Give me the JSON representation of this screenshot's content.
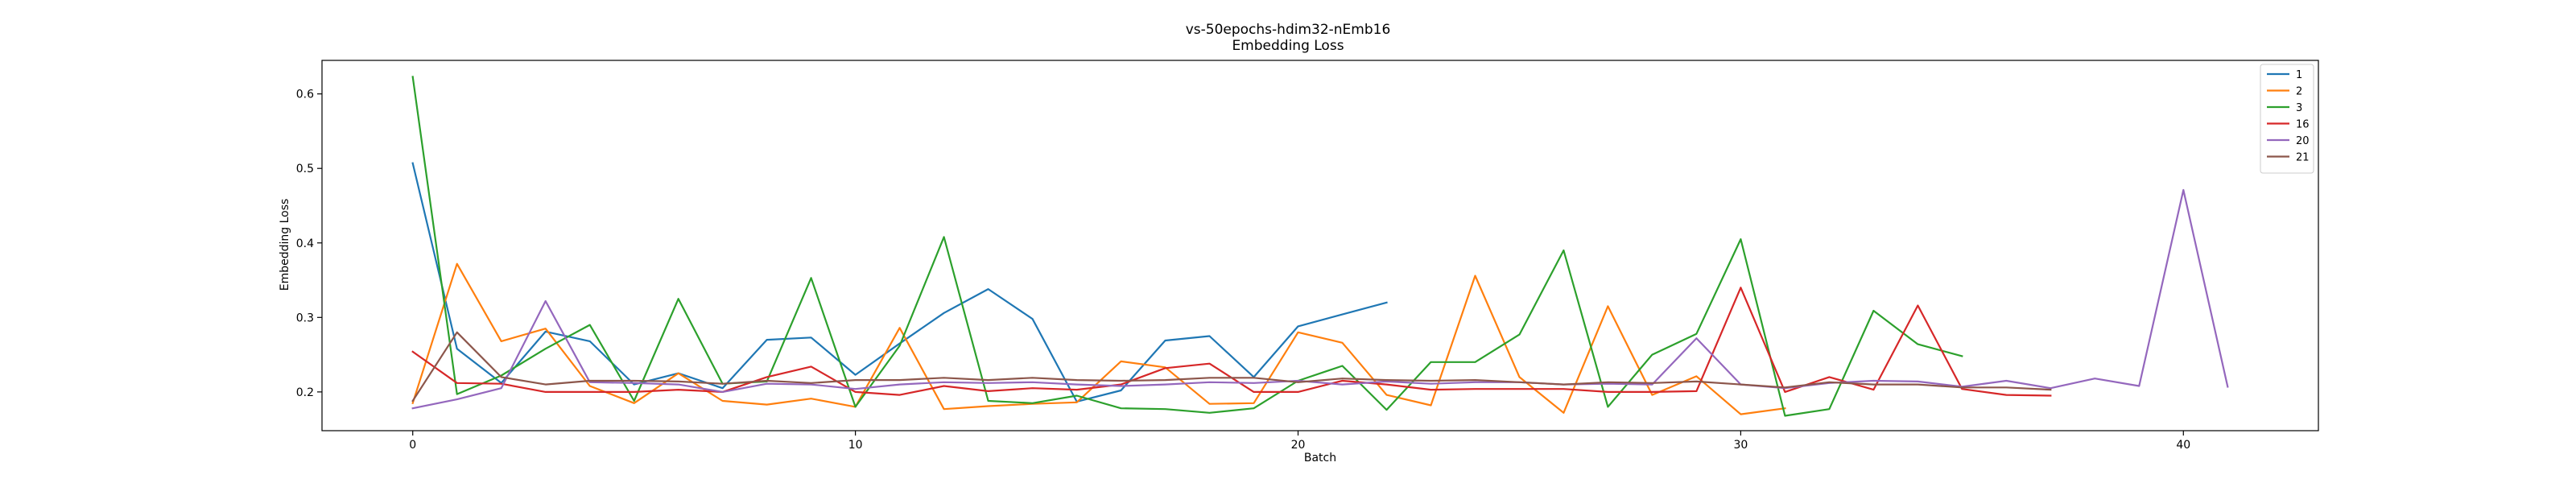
{
  "chart_data": {
    "type": "line",
    "title": "vs-50epochs-hdim32-nEmb16",
    "subtitle": "Embedding Loss",
    "xlabel": "Batch",
    "ylabel": "Embedding Loss",
    "xlim": [
      -2.05,
      43.05
    ],
    "ylim": [
      0.148,
      0.645
    ],
    "xticks": [
      0,
      10,
      20,
      30,
      40
    ],
    "yticks": [
      0.2,
      0.3,
      0.4,
      0.5,
      0.6
    ],
    "ytick_labels": [
      "0.2",
      "0.3",
      "0.4",
      "0.5",
      "0.6"
    ],
    "grid": false,
    "legend_position": "top-right",
    "series": [
      {
        "name": "1",
        "color": "#1f77b4",
        "x": [
          0,
          1,
          2,
          3,
          4,
          5,
          6,
          7,
          8,
          9,
          10,
          11,
          12,
          13,
          14,
          15,
          16,
          17,
          18,
          19,
          20,
          21,
          22
        ],
        "y": [
          0.507,
          0.258,
          0.212,
          0.281,
          0.268,
          0.21,
          0.225,
          0.205,
          0.27,
          0.273,
          0.223,
          0.265,
          0.306,
          0.338,
          0.298,
          0.187,
          0.202,
          0.269,
          0.275,
          0.22,
          0.288,
          0.304,
          0.32
        ]
      },
      {
        "name": "2",
        "color": "#ff7f0e",
        "x": [
          0,
          1,
          2,
          3,
          4,
          5,
          6,
          7,
          8,
          9,
          10,
          11,
          12,
          13,
          14,
          15,
          16,
          17,
          18,
          19,
          20,
          21,
          22,
          23,
          24,
          25,
          26,
          27,
          28,
          29,
          30,
          31
        ],
        "y": [
          0.185,
          0.372,
          0.268,
          0.285,
          0.208,
          0.185,
          0.225,
          0.188,
          0.183,
          0.191,
          0.18,
          0.286,
          0.177,
          0.181,
          0.184,
          0.186,
          0.241,
          0.233,
          0.184,
          0.185,
          0.28,
          0.266,
          0.196,
          0.182,
          0.356,
          0.22,
          0.172,
          0.315,
          0.196,
          0.221,
          0.17,
          0.178
        ]
      },
      {
        "name": "3",
        "color": "#2ca02c",
        "x": [
          0,
          1,
          2,
          3,
          4,
          5,
          6,
          7,
          8,
          9,
          10,
          11,
          12,
          13,
          14,
          15,
          16,
          17,
          18,
          19,
          20,
          21,
          22,
          23,
          24,
          25,
          26,
          27,
          28,
          29,
          30,
          31,
          32,
          33,
          34,
          35
        ],
        "y": [
          0.623,
          0.197,
          0.222,
          0.258,
          0.29,
          0.188,
          0.325,
          0.211,
          0.214,
          0.353,
          0.18,
          0.262,
          0.408,
          0.188,
          0.185,
          0.195,
          0.178,
          0.177,
          0.172,
          0.178,
          0.215,
          0.235,
          0.176,
          0.24,
          0.24,
          0.277,
          0.39,
          0.18,
          0.25,
          0.278,
          0.405,
          0.168,
          0.177,
          0.309,
          0.264,
          0.248
        ]
      },
      {
        "name": "16",
        "color": "#d62728",
        "x": [
          0,
          1,
          2,
          3,
          4,
          5,
          6,
          7,
          8,
          9,
          10,
          11,
          12,
          13,
          14,
          15,
          16,
          17,
          18,
          19,
          20,
          21,
          22,
          23,
          24,
          25,
          26,
          27,
          28,
          29,
          30,
          31,
          32,
          33,
          34,
          35,
          36,
          37
        ],
        "y": [
          0.254,
          0.212,
          0.211,
          0.2,
          0.2,
          0.2,
          0.203,
          0.2,
          0.22,
          0.234,
          0.2,
          0.196,
          0.208,
          0.201,
          0.205,
          0.203,
          0.21,
          0.232,
          0.238,
          0.2,
          0.2,
          0.215,
          0.21,
          0.203,
          0.204,
          0.204,
          0.204,
          0.2,
          0.2,
          0.201,
          0.34,
          0.2,
          0.22,
          0.203,
          0.316,
          0.204,
          0.196,
          0.195
        ]
      },
      {
        "name": "20",
        "color": "#9467bd",
        "x": [
          0,
          1,
          2,
          3,
          4,
          5,
          6,
          7,
          8,
          9,
          10,
          11,
          12,
          13,
          14,
          15,
          16,
          17,
          18,
          19,
          20,
          21,
          22,
          23,
          24,
          25,
          26,
          27,
          28,
          29,
          30,
          31,
          32,
          33,
          34,
          35,
          36,
          37,
          38,
          39,
          40,
          41
        ],
        "y": [
          0.178,
          0.19,
          0.205,
          0.322,
          0.213,
          0.212,
          0.21,
          0.2,
          0.211,
          0.21,
          0.204,
          0.21,
          0.213,
          0.212,
          0.213,
          0.21,
          0.208,
          0.21,
          0.213,
          0.212,
          0.215,
          0.21,
          0.214,
          0.211,
          0.213,
          0.213,
          0.21,
          0.211,
          0.21,
          0.272,
          0.21,
          0.205,
          0.212,
          0.215,
          0.214,
          0.207,
          0.215,
          0.205,
          0.218,
          0.208,
          0.471,
          0.207
        ]
      },
      {
        "name": "21",
        "color": "#8c564b",
        "x": [
          0,
          1,
          2,
          3,
          4,
          5,
          6,
          7,
          8,
          9,
          10,
          11,
          12,
          13,
          14,
          15,
          16,
          17,
          18,
          19,
          20,
          21,
          22,
          23,
          24,
          25,
          26,
          27,
          28,
          29,
          30,
          31,
          32,
          33,
          34,
          35,
          36,
          37
        ],
        "y": [
          0.188,
          0.28,
          0.22,
          0.21,
          0.215,
          0.215,
          0.214,
          0.211,
          0.215,
          0.212,
          0.216,
          0.216,
          0.219,
          0.216,
          0.219,
          0.216,
          0.215,
          0.216,
          0.219,
          0.219,
          0.213,
          0.218,
          0.216,
          0.215,
          0.216,
          0.213,
          0.21,
          0.213,
          0.212,
          0.214,
          0.21,
          0.206,
          0.213,
          0.21,
          0.21,
          0.206,
          0.206,
          0.203
        ]
      }
    ]
  }
}
